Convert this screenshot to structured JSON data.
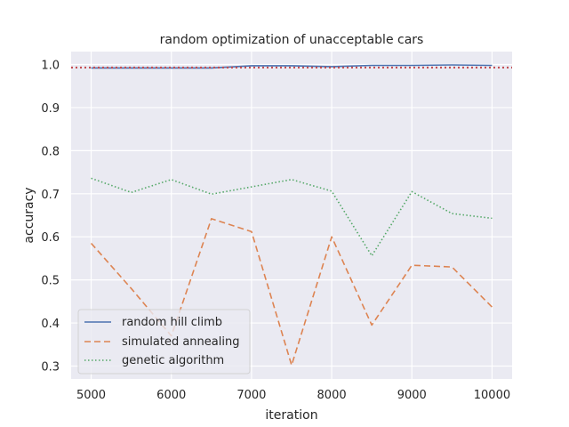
{
  "chart_data": {
    "type": "line",
    "title": "random optimization of unacceptable cars",
    "xlabel": "iteration",
    "ylabel": "accuracy",
    "x": [
      5000,
      5500,
      6000,
      6500,
      7000,
      7500,
      8000,
      8500,
      9000,
      9500,
      10000
    ],
    "xlim": [
      4750,
      10250
    ],
    "ylim": [
      0.27,
      1.03
    ],
    "xticks": [
      5000,
      6000,
      7000,
      8000,
      9000,
      10000
    ],
    "yticks": [
      0.3,
      0.4,
      0.5,
      0.6,
      0.7,
      0.8,
      0.9,
      1.0
    ],
    "ytick_labels": [
      "0.3",
      "0.4",
      "0.5",
      "0.6",
      "0.7",
      "0.8",
      "0.9",
      "1.0"
    ],
    "grid": true,
    "legend_position": "lower-left",
    "series": [
      {
        "name": "random hill climb",
        "color": "#4c72b0",
        "dash": "solid",
        "values": [
          0.992,
          0.992,
          0.992,
          0.992,
          0.997,
          0.997,
          0.995,
          0.998,
          0.998,
          0.999,
          0.998
        ]
      },
      {
        "name": "simulated annealing",
        "color": "#dd8452",
        "dash": "dashed",
        "values": [
          0.585,
          0.48,
          0.37,
          0.642,
          0.612,
          0.302,
          0.6,
          0.395,
          0.534,
          0.53,
          0.437
        ]
      },
      {
        "name": "genetic algorithm",
        "color": "#55a868",
        "dash": "dotted",
        "values": [
          0.736,
          0.703,
          0.733,
          0.699,
          0.716,
          0.733,
          0.706,
          0.556,
          0.705,
          0.654,
          0.643
        ]
      }
    ],
    "reference_line": {
      "orientation": "horizontal",
      "y": 0.993,
      "color": "#c44e52",
      "dash": "dotted"
    }
  }
}
